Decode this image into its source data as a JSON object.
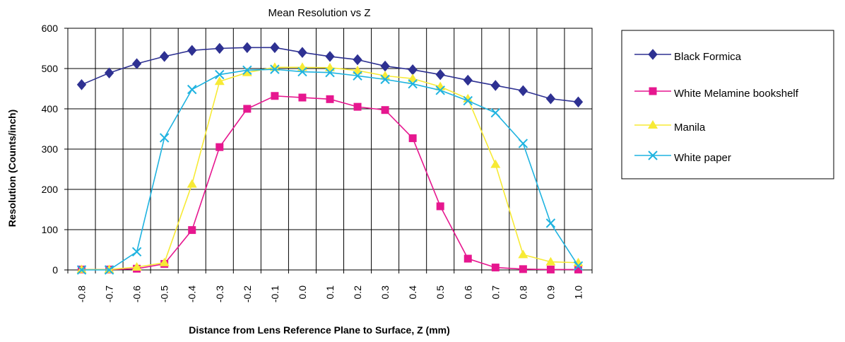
{
  "chart_data": {
    "type": "line",
    "title": "Mean Resolution vs Z",
    "xlabel": "Distance from Lens Reference Plane to Surface, Z (mm)",
    "ylabel": "Resolution (Counts/inch)",
    "x": [
      "-0.8",
      "-0.7",
      "-0.6",
      "-0.5",
      "-0.4",
      "-0.3",
      "-0.2",
      "-0.1",
      "0.0",
      "0.1",
      "0.2",
      "0.3",
      "0.4",
      "0.5",
      "0.6",
      "0.7",
      "0.8",
      "0.9",
      "1.0"
    ],
    "ylim": [
      0,
      600
    ],
    "yticks": [
      "0",
      "100",
      "200",
      "300",
      "400",
      "500",
      "600"
    ],
    "grid": true,
    "legend_position": "right",
    "series": [
      {
        "name": "Black Formica",
        "color": "#2e3192",
        "marker": "diamond",
        "values": [
          460,
          489,
          512,
          530,
          545,
          550,
          552,
          552,
          540,
          530,
          522,
          506,
          497,
          485,
          471,
          458,
          445,
          425,
          417
        ]
      },
      {
        "name": "White Melamine bookshelf",
        "color": "#e6178f",
        "marker": "square",
        "values": [
          1,
          1,
          3,
          15,
          99,
          305,
          400,
          432,
          428,
          424,
          405,
          397,
          327,
          158,
          28,
          6,
          2,
          1,
          1
        ]
      },
      {
        "name": "Manila",
        "color": "#f7ea35",
        "marker": "triangle",
        "values": [
          1,
          1,
          7,
          18,
          213,
          468,
          490,
          503,
          503,
          502,
          495,
          482,
          475,
          455,
          425,
          262,
          38,
          20,
          18
        ]
      },
      {
        "name": "White paper",
        "color": "#1fb3e0",
        "marker": "x",
        "values": [
          0,
          0,
          45,
          328,
          448,
          485,
          496,
          498,
          492,
          490,
          482,
          473,
          462,
          446,
          420,
          390,
          314,
          116,
          10
        ]
      }
    ]
  }
}
